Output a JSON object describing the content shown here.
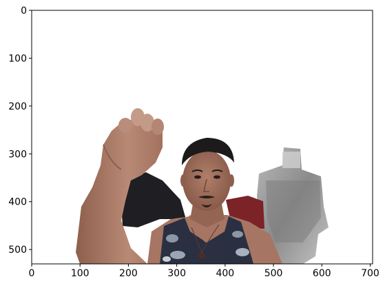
{
  "chart_data": {
    "type": "image",
    "title": "",
    "xlabel": "",
    "ylabel": "",
    "xlim": [
      0,
      705
    ],
    "ylim": [
      530,
      0
    ],
    "x_ticks": [
      0,
      100,
      200,
      300,
      400,
      500,
      600,
      700
    ],
    "y_ticks": [
      0,
      100,
      200,
      300,
      400,
      500
    ],
    "x_tick_labels": [
      "0",
      "100",
      "200",
      "300",
      "400",
      "500",
      "600",
      "700"
    ],
    "y_tick_labels": [
      "0",
      "100",
      "200",
      "300",
      "400",
      "500"
    ],
    "grid": false,
    "image_content": "photo-man-raised-fist"
  },
  "colors": {
    "background": "#ffffff",
    "axis": "#000000",
    "skin": "#b98a76",
    "skin_shadow": "#8c5f4e",
    "hair": "#1d1a1c",
    "tank_top": "#2a3042",
    "camo_light": "#8b97a7",
    "jacket": "#1f1e22",
    "red_cloth": "#7b2327",
    "grey_object": "#9a9a9a"
  }
}
